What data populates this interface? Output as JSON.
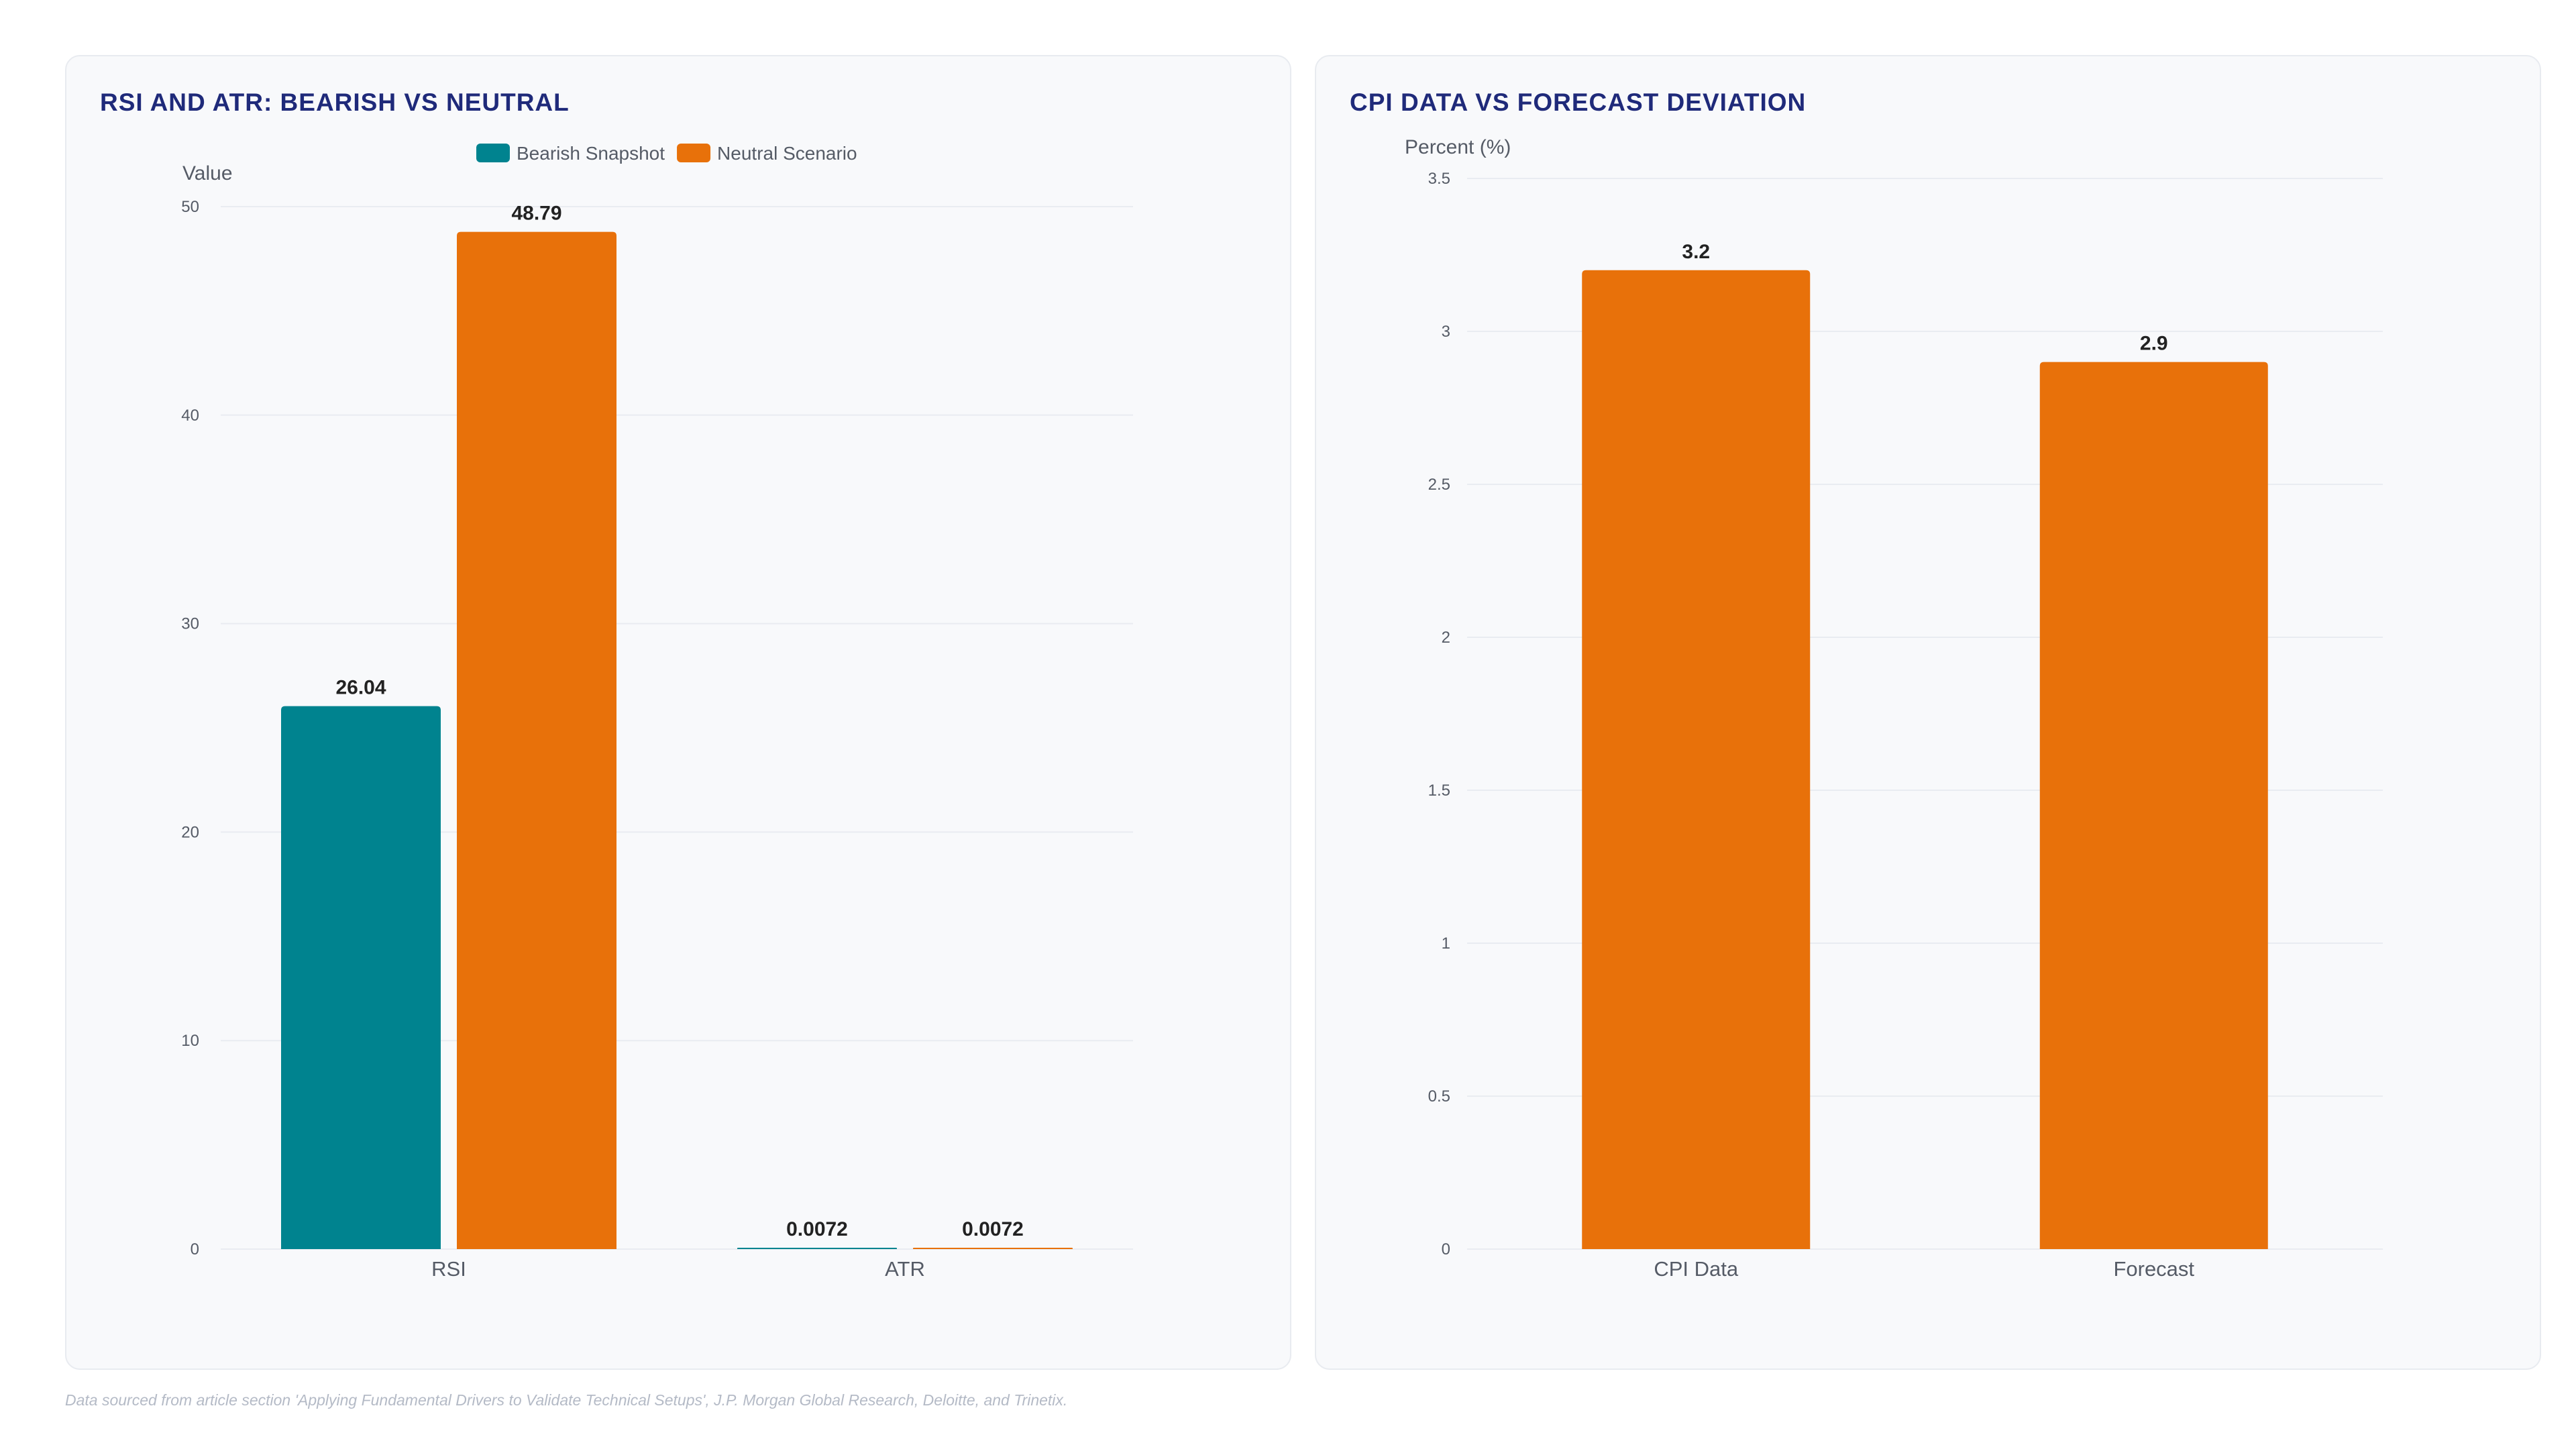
{
  "footnote": "Data sourced from article section 'Applying Fundamental Drivers to Validate Technical Setups', J.P. Morgan Global Research, Deloitte, and Trinetix.",
  "colors": {
    "bearish": "#00838f",
    "neutral": "#e8710a",
    "title": "#1f2a7a",
    "grid": "#e9ecf1",
    "tick": "#555b66",
    "label": "#222222"
  },
  "chart_data": [
    {
      "type": "bar",
      "title": "RSI AND ATR: BEARISH VS NEUTRAL",
      "xlabel": "",
      "ylabel": "Value",
      "categories": [
        "RSI",
        "ATR"
      ],
      "series": [
        {
          "name": "Bearish Snapshot",
          "values": [
            26.04,
            0.0072
          ]
        },
        {
          "name": "Neutral Scenario",
          "values": [
            48.79,
            0.0072
          ]
        }
      ],
      "ylim": [
        0,
        50
      ],
      "yticks": [
        "0",
        "10",
        "20",
        "30",
        "40",
        "50"
      ],
      "legend": "top-center",
      "grid": true
    },
    {
      "type": "bar",
      "title": "CPI DATA VS FORECAST DEVIATION",
      "xlabel": "",
      "ylabel": "Percent (%)",
      "categories": [
        "CPI Data",
        "Forecast"
      ],
      "series": [
        {
          "values": [
            3.2,
            2.9
          ]
        }
      ],
      "ylim": [
        0,
        3.5
      ],
      "yticks": [
        "0",
        "0.5",
        "1",
        "1.5",
        "2",
        "2.5",
        "3",
        "3.5"
      ],
      "legend": "none",
      "grid": true
    }
  ]
}
